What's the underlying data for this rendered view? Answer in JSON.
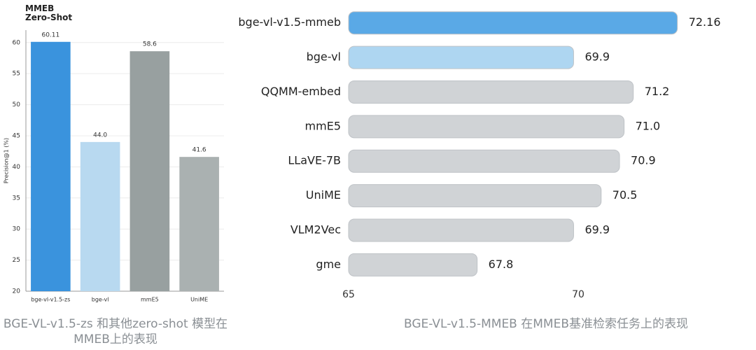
{
  "chart_data": [
    {
      "type": "bar",
      "title": "MMEB Zero-Shot",
      "y_label": "Precision@1 (%)",
      "categories": [
        "bge-vl-v1.5-zs",
        "bge-vl",
        "mmE5",
        "UniME"
      ],
      "values": [
        60.11,
        44.0,
        58.6,
        41.6
      ],
      "value_labels": [
        "60.11",
        "44.0",
        "58.6",
        "41.6"
      ],
      "colors": [
        "#3a93dd",
        "#b8d9f0",
        "#98a0a0",
        "#aab1b1"
      ],
      "ylim": [
        20,
        62
      ],
      "yticks": [
        20,
        25,
        30,
        35,
        40,
        45,
        50,
        55,
        60
      ],
      "grid": true,
      "caption": "BGE-VL-v1.5-zs 和其他zero-shot 模型在MMEB上的表现"
    },
    {
      "type": "barh",
      "categories": [
        "bge-vl-v1.5-mmeb",
        "bge-vl",
        "QQMM-embed",
        "mmE5",
        "LLaVE-7B",
        "UniME",
        "VLM2Vec",
        "gme"
      ],
      "values": [
        72.16,
        69.9,
        71.2,
        71.0,
        70.9,
        70.5,
        69.9,
        67.8
      ],
      "value_labels": [
        "72.16",
        "69.9",
        "71.2",
        "71.0",
        "70.9",
        "70.5",
        "69.9",
        "67.8"
      ],
      "colors": [
        "#5aa9e6",
        "#aed6f1",
        "#d0d3d6",
        "#d0d3d6",
        "#d0d3d6",
        "#d0d3d6",
        "#d0d3d6",
        "#d0d3d6"
      ],
      "xlim": [
        65,
        73
      ],
      "xticks": [
        65,
        70
      ],
      "caption": "BGE-VL-v1.5-MMEB 在MMEB基准检索任务上的表现"
    }
  ]
}
